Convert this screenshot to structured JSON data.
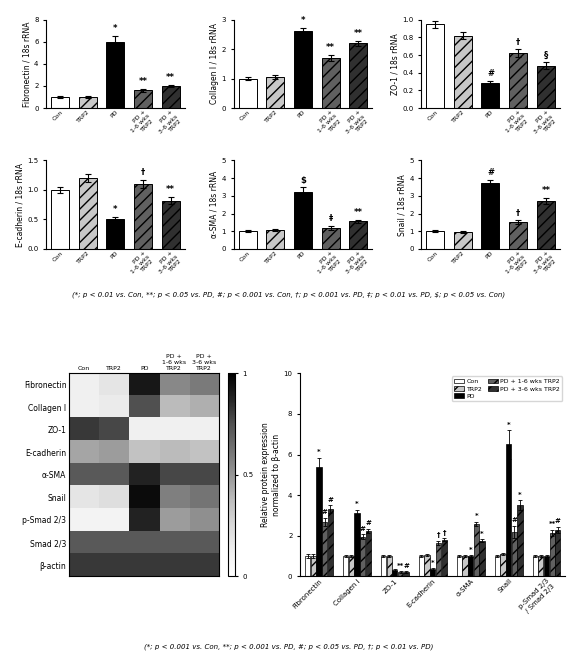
{
  "chart_data": [
    {
      "type": "bar",
      "ylabel": "Fibronectin / 18s rRNA",
      "categories": [
        "Con",
        "TRP2",
        "PD",
        "PD +\n1-6 wks\nTRP2",
        "PD +\n3-6 wks\nTRP2"
      ],
      "values": [
        1.0,
        1.0,
        6.0,
        1.6,
        2.0
      ],
      "errors": [
        0.08,
        0.08,
        0.55,
        0.12,
        0.12
      ],
      "annotations": [
        null,
        null,
        "*",
        "**",
        "**"
      ],
      "colors": [
        "white",
        "#c8c8c8",
        "black",
        "#606060",
        "#303030"
      ],
      "ylim": [
        0,
        8
      ],
      "yticks": [
        0,
        2,
        4,
        6,
        8
      ],
      "note": "(*; p < 0.01 vs. Con, **; p < 0.05 vs. PD, #; p < 0.001 vs. Con, †; p < 0.001 vs. PD, ‡; p < 0.01 vs. PD, $; p < 0.05 vs. Con)"
    },
    {
      "type": "bar",
      "ylabel": "Collagen I / 18s rRNA",
      "categories": [
        "Con",
        "TRP2",
        "PD",
        "PD +\n1-6 wks\nTRP2",
        "PD +\n3-6 wks\nTRP2"
      ],
      "values": [
        1.0,
        1.05,
        2.6,
        1.7,
        2.2
      ],
      "errors": [
        0.06,
        0.06,
        0.12,
        0.1,
        0.08
      ],
      "annotations": [
        null,
        null,
        "*",
        "**",
        "**"
      ],
      "colors": [
        "white",
        "#c8c8c8",
        "black",
        "#606060",
        "#303030"
      ],
      "ylim": [
        0,
        3
      ],
      "yticks": [
        0,
        1,
        2,
        3
      ]
    },
    {
      "type": "bar",
      "ylabel": "ZO-1 / 18s rRNA",
      "categories": [
        "Con",
        "TRP2",
        "PD",
        "PD +\n1-6 wks\nTRP2",
        "PD +\n3-6 wks\nTRP2"
      ],
      "values": [
        0.95,
        0.82,
        0.28,
        0.62,
        0.48
      ],
      "errors": [
        0.04,
        0.04,
        0.025,
        0.045,
        0.04
      ],
      "annotations": [
        null,
        null,
        "#",
        "†",
        "§"
      ],
      "colors": [
        "white",
        "#c8c8c8",
        "black",
        "#606060",
        "#303030"
      ],
      "ylim": [
        0,
        1
      ],
      "yticks": [
        {
          "value": 0,
          "label": "0.0"
        },
        0.2,
        0.4,
        0.6,
        0.8,
        {
          "value": 1,
          "label": "1.0"
        }
      ]
    },
    {
      "type": "bar",
      "ylabel": "E-cadherin / 18s rRNA",
      "categories": [
        "Con",
        "TRP2",
        "PD",
        "PD +\n1-6 wks\nTRP2",
        "PD +\n3-6 wks\nTRP2"
      ],
      "values": [
        1.0,
        1.2,
        0.5,
        1.1,
        0.82
      ],
      "errors": [
        0.05,
        0.07,
        0.04,
        0.07,
        0.06
      ],
      "annotations": [
        null,
        null,
        "*",
        "†",
        "**"
      ],
      "colors": [
        "white",
        "#c8c8c8",
        "black",
        "#606060",
        "#303030"
      ],
      "ylim": [
        0,
        1.5
      ],
      "yticks": [
        {
          "value": 0,
          "label": "0.0"
        },
        0.5,
        {
          "value": 1,
          "label": "1.0"
        },
        1.5
      ]
    },
    {
      "type": "bar",
      "ylabel": "α-SMA / 18s rRNA",
      "categories": [
        "Con",
        "TRP2",
        "PD",
        "PD +\n1-6 wks\nTRP2",
        "PD +\n3-6 wks\nTRP2"
      ],
      "values": [
        1.0,
        1.05,
        3.2,
        1.2,
        1.55
      ],
      "errors": [
        0.05,
        0.05,
        0.28,
        0.12,
        0.1
      ],
      "annotations": [
        null,
        null,
        "$",
        "‡",
        "**"
      ],
      "colors": [
        "white",
        "#c8c8c8",
        "black",
        "#606060",
        "#303030"
      ],
      "ylim": [
        0,
        5
      ],
      "yticks": [
        0,
        1,
        2,
        3,
        4,
        5
      ]
    },
    {
      "type": "bar",
      "ylabel": "Snail / 18s rRNA",
      "categories": [
        "Con",
        "TRP2",
        "PD",
        "PD +\n1-6 wks\nTRP2",
        "PD +\n3-6 wks\nTRP2"
      ],
      "values": [
        1.0,
        0.95,
        3.7,
        1.5,
        2.7
      ],
      "errors": [
        0.05,
        0.05,
        0.22,
        0.12,
        0.18
      ],
      "annotations": [
        null,
        null,
        "#",
        "†",
        "**"
      ],
      "colors": [
        "white",
        "#c8c8c8",
        "black",
        "#606060",
        "#303030"
      ],
      "ylim": [
        0,
        5
      ],
      "yticks": [
        0,
        1,
        2,
        3,
        4,
        5
      ]
    },
    {
      "type": "heatmap",
      "categories": [
        "Con",
        "TRP2",
        "PD",
        "PD +\n1-6 wks\nTRP2",
        "PD +\n3-6 wks\nTRP2"
      ],
      "rows": [
        "Fibronectin",
        "Collagen I",
        "ZO-1",
        "E-cadherin",
        "α-SMA",
        "Snail",
        "p-Smad 2/3",
        "Smad 2/3",
        "β-actin"
      ],
      "cells": [
        [
          0.12,
          0.18,
          0.92,
          0.55,
          0.6
        ],
        [
          0.12,
          0.15,
          0.75,
          0.38,
          0.42
        ],
        [
          0.82,
          0.78,
          0.12,
          0.12,
          0.12
        ],
        [
          0.45,
          0.48,
          0.35,
          0.38,
          0.35
        ],
        [
          0.72,
          0.72,
          0.88,
          0.78,
          0.78
        ],
        [
          0.18,
          0.22,
          0.96,
          0.58,
          0.62
        ],
        [
          0.1,
          0.1,
          0.88,
          0.48,
          0.52
        ],
        [
          0.72,
          0.72,
          0.72,
          0.72,
          0.72
        ],
        [
          0.82,
          0.82,
          0.82,
          0.82,
          0.82
        ]
      ],
      "clim": [
        0,
        1
      ],
      "cticks": [
        0,
        0.5,
        1
      ]
    },
    {
      "type": "bar",
      "ylabel": "Relative protein expression\nnormalized to β-actin",
      "categories": [
        "Fibronectin",
        "Collagen I",
        "ZO-1",
        "E-cadherin",
        "α-SMA",
        "Snail",
        "p-Smad 2/3\n/ Smad 2/3"
      ],
      "series": [
        {
          "name": "Con",
          "color": "white",
          "values": [
            1.0,
            1.0,
            1.0,
            1.0,
            1.0,
            1.0,
            1.0
          ],
          "errors": [
            0.08,
            0.06,
            0.05,
            0.05,
            0.05,
            0.06,
            0.05
          ],
          "annotations": [
            null,
            null,
            null,
            null,
            null,
            null,
            null
          ]
        },
        {
          "name": "TRP2",
          "color": "#c8c8c8",
          "values": [
            1.0,
            1.0,
            1.0,
            1.05,
            1.0,
            1.1,
            1.0
          ],
          "errors": [
            0.08,
            0.06,
            0.05,
            0.05,
            0.05,
            0.06,
            0.05
          ],
          "annotations": [
            null,
            null,
            null,
            null,
            null,
            null,
            null
          ]
        },
        {
          "name": "PD",
          "color": "black",
          "values": [
            5.4,
            3.1,
            0.3,
            0.35,
            1.0,
            6.5,
            1.0
          ],
          "errors": [
            0.45,
            0.18,
            0.04,
            0.04,
            0.05,
            0.7,
            0.05
          ],
          "annotations": [
            "*",
            "*",
            null,
            "*",
            "*",
            "*",
            null
          ]
        },
        {
          "name": "PD + 1-6 wks TRP2",
          "color": "#606060",
          "values": [
            2.7,
            1.95,
            0.22,
            1.65,
            2.6,
            2.2,
            2.15
          ],
          "errors": [
            0.2,
            0.12,
            0.04,
            0.1,
            0.1,
            0.3,
            0.15
          ],
          "annotations": [
            "#",
            "#",
            "**",
            "†",
            "*",
            "#",
            "**"
          ]
        },
        {
          "name": "PD + 3-6 wks TRP2",
          "color": "#303030",
          "values": [
            3.3,
            2.25,
            0.22,
            1.8,
            1.75,
            3.5,
            2.3
          ],
          "errors": [
            0.2,
            0.1,
            0.04,
            0.08,
            0.08,
            0.25,
            0.15
          ],
          "annotations": [
            "#",
            "#",
            "#",
            "†",
            "*",
            "*",
            "#"
          ]
        }
      ],
      "ylim": [
        0,
        10
      ],
      "yticks": [
        0,
        2,
        4,
        6,
        8,
        10
      ],
      "legend": "upper right",
      "note": "(*; p < 0.001 vs. Con, **; p < 0.001 vs. PD, #; p < 0.05 vs. PD, †; p < 0.01 vs. PD)"
    }
  ]
}
